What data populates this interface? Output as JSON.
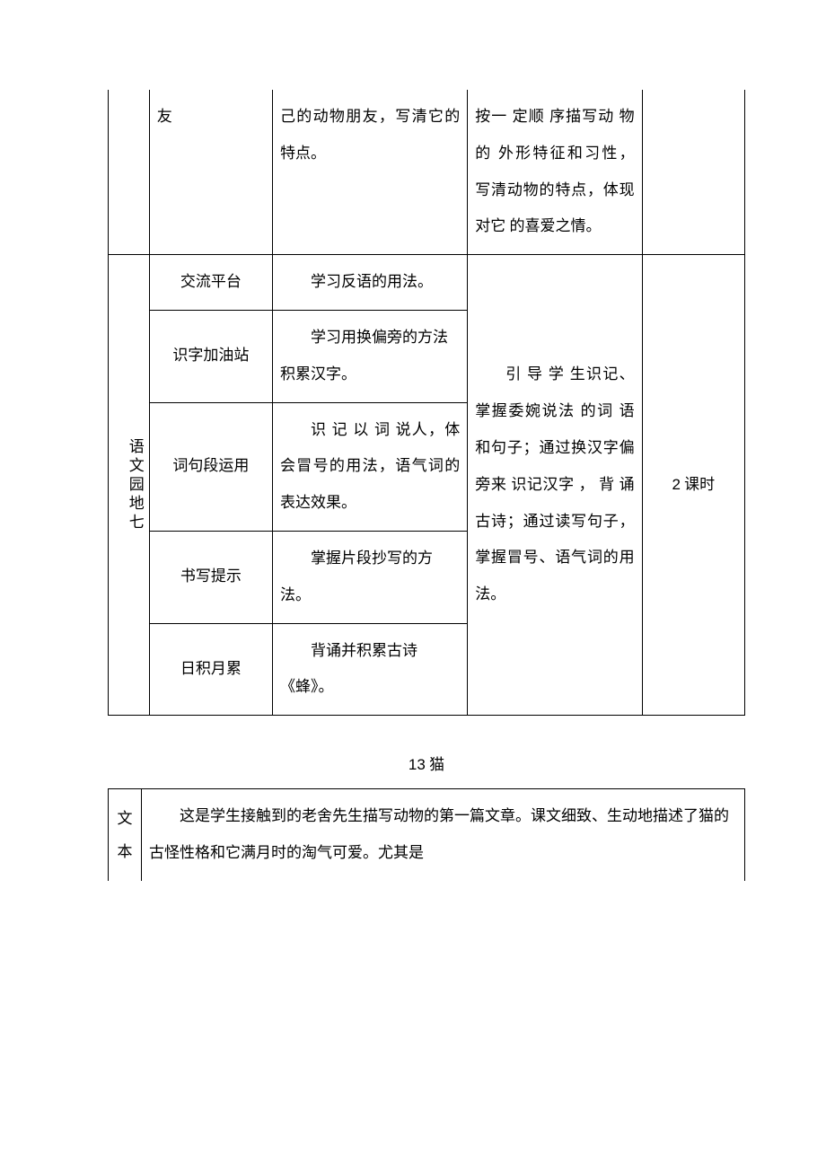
{
  "table1": {
    "row0": {
      "c2": "友",
      "c3": "己的动物朋友，写清它的特点。",
      "c4": "按一 定顺 序描写动 物的 外形特征和习性， 写清动物的特点，体现 对它 的喜爱之情。"
    },
    "section_label": "语文园地七",
    "rows": [
      {
        "name": "交流平台",
        "desc": "学习反语的用法。"
      },
      {
        "name": "识字加油站",
        "desc": "学习用换偏旁的方法积累汉字。"
      },
      {
        "name": "词句段运用",
        "desc": "识 记 以 词 说人，体会冒号的用法，语气词的表达效果。"
      },
      {
        "name": "书写提示",
        "desc": "掌握片段抄写的方法。"
      },
      {
        "name": "日积月累",
        "desc": "背诵并积累古诗《蜂》。"
      }
    ],
    "merged_c4": "引 导 学 生识记、掌握委婉说法 的词 语和句子；通过换汉字偏 旁来 识记汉字 ， 背 诵古诗；通过读写句子， 掌握冒号、语气词的用法。",
    "merged_c5_num": "2",
    "merged_c5_suffix": " 课时"
  },
  "lesson": {
    "num": "13",
    "title": " 猫"
  },
  "table2": {
    "side": "文本",
    "body": "这是学生接触到的老舍先生描写动物的第一篇文章。课文细致、生动地描述了猫的古怪性格和它满月时的淘气可爱。尤其是"
  }
}
